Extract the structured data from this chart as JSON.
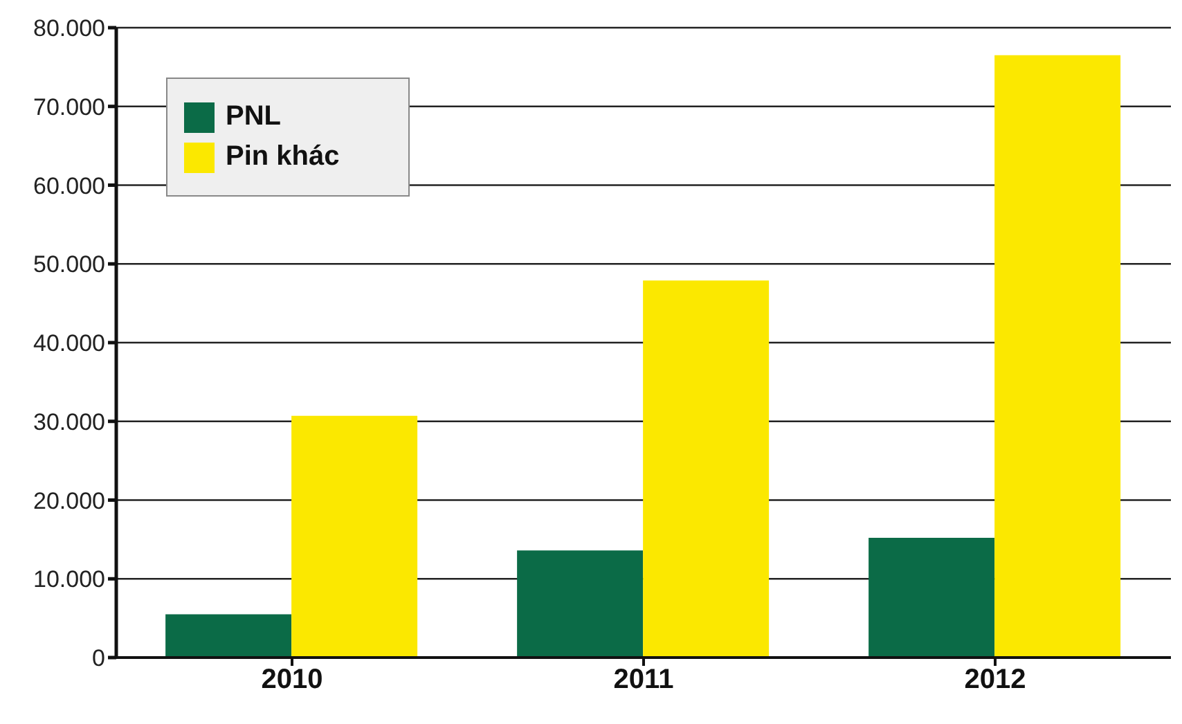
{
  "chart_data": {
    "type": "bar",
    "categories": [
      "2010",
      "2011",
      "2012"
    ],
    "series": [
      {
        "name": "PNL",
        "color": "#0b6b47",
        "values": [
          5500,
          13600,
          15200
        ]
      },
      {
        "name": "Pin khác",
        "color": "#fbe800",
        "values": [
          30700,
          47900,
          76500
        ]
      }
    ],
    "ylim": [
      0,
      80000
    ],
    "yticks": [
      {
        "value": 0,
        "label": "0"
      },
      {
        "value": 10000,
        "label": "10.000"
      },
      {
        "value": 20000,
        "label": "20.000"
      },
      {
        "value": 30000,
        "label": "30.000"
      },
      {
        "value": 40000,
        "label": "40.000"
      },
      {
        "value": 50000,
        "label": "50.000"
      },
      {
        "value": 60000,
        "label": "60.000"
      },
      {
        "value": 70000,
        "label": "70.000"
      },
      {
        "value": 80000,
        "label": "80.000"
      }
    ],
    "grid": "y",
    "legend": "top left"
  }
}
